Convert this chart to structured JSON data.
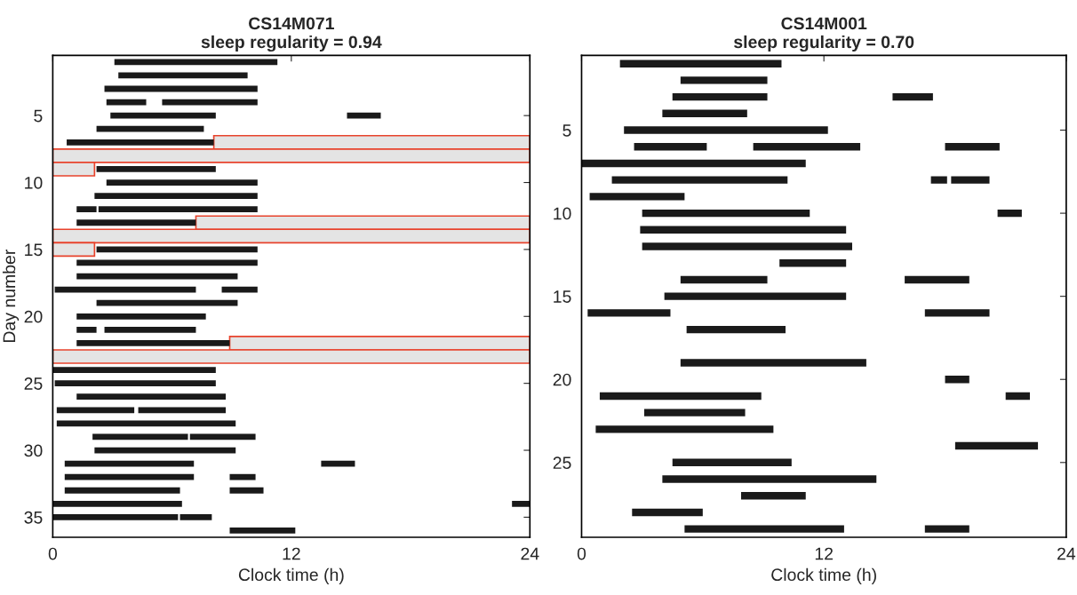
{
  "chart_data": [
    {
      "type": "bar",
      "orientation": "horizontal",
      "title": "CS14M071",
      "subtitle": "sleep regularity = 0.94",
      "xlabel": "Clock time (h)",
      "ylabel": "Day number",
      "categories": [
        null,
        null,
        null,
        null,
        "5",
        null,
        null,
        null,
        null,
        "10",
        null,
        null,
        null,
        null,
        "15",
        null,
        null,
        null,
        null,
        "20",
        null,
        null,
        null,
        null,
        "25",
        null,
        null,
        null,
        null,
        "30",
        null,
        null,
        null,
        null,
        "35",
        null
      ],
      "xlim": [
        0,
        24
      ],
      "xticks": [
        0,
        12,
        24
      ],
      "grid": false,
      "legend": false,
      "series": [
        {
          "color": "#e4e4e4",
          "base": [
            null,
            null,
            null,
            null,
            null,
            null,
            8.1,
            0,
            0,
            null,
            null,
            null,
            7.2,
            0,
            0,
            null,
            null,
            null,
            null,
            null,
            null,
            8.9,
            0,
            null,
            null,
            null,
            null,
            null,
            null,
            null,
            null,
            null,
            null,
            null,
            null,
            null
          ],
          "values": [
            null,
            null,
            null,
            null,
            null,
            null,
            15.9,
            24,
            2.1,
            null,
            null,
            null,
            16.8,
            24,
            2.1,
            null,
            null,
            null,
            null,
            null,
            null,
            15.1,
            24,
            null,
            null,
            null,
            null,
            null,
            null,
            null,
            null,
            null,
            null,
            null,
            null,
            null
          ]
        },
        {
          "color": "#1a1a1a",
          "base": [
            3.1,
            3.3,
            2.6,
            2.7,
            2.9,
            2.2,
            0.7,
            null,
            2.2,
            2.7,
            2.1,
            1.2,
            1.2,
            null,
            2.2,
            1.2,
            1.2,
            0.1,
            2.2,
            1.2,
            1.2,
            1.2,
            null,
            0,
            0.1,
            1.2,
            0.2,
            0.2,
            2.0,
            2.1,
            0.6,
            0.6,
            0.6,
            0,
            0,
            8.9
          ],
          "values": [
            8.2,
            6.5,
            7.7,
            2.0,
            5.3,
            5.4,
            7.4,
            null,
            6.0,
            7.6,
            8.2,
            1.0,
            6.0,
            null,
            8.1,
            9.1,
            8.1,
            7.1,
            7.1,
            6.5,
            1.0,
            7.7,
            null,
            8.2,
            8.1,
            7.5,
            3.9,
            9.0,
            4.8,
            7.1,
            6.5,
            6.5,
            5.8,
            6.5,
            6.3,
            3.3
          ]
        },
        {
          "color": "#1a1a1a",
          "base": [
            null,
            null,
            null,
            5.5,
            14.8,
            null,
            null,
            null,
            null,
            null,
            null,
            2.3,
            null,
            null,
            null,
            null,
            null,
            8.5,
            null,
            null,
            2.6,
            null,
            null,
            null,
            null,
            null,
            4.3,
            null,
            6.9,
            null,
            13.5,
            8.9,
            8.9,
            23.1,
            6.4,
            null
          ],
          "values": [
            null,
            null,
            null,
            4.8,
            1.7,
            null,
            null,
            null,
            null,
            null,
            null,
            8.0,
            null,
            null,
            null,
            null,
            null,
            1.8,
            null,
            null,
            4.6,
            null,
            null,
            null,
            null,
            null,
            4.4,
            null,
            3.3,
            null,
            1.7,
            1.3,
            1.7,
            0.9,
            1.6,
            null
          ]
        }
      ]
    },
    {
      "type": "bar",
      "orientation": "horizontal",
      "title": "CS14M001",
      "subtitle": "sleep regularity = 0.70",
      "xlabel": "Clock time (h)",
      "categories": [
        null,
        null,
        null,
        null,
        "5",
        null,
        null,
        null,
        null,
        "10",
        null,
        null,
        null,
        null,
        "15",
        null,
        null,
        null,
        null,
        "20",
        null,
        null,
        null,
        null,
        "25",
        null,
        null,
        null,
        null
      ],
      "xlim": [
        0,
        24
      ],
      "xticks": [
        0,
        12,
        24
      ],
      "grid": false,
      "legend": false,
      "series": [
        {
          "color": "#1a1a1a",
          "base": [
            1.9,
            4.9,
            4.5,
            4.0,
            2.1,
            2.6,
            0,
            1.5,
            0.4,
            3.0,
            2.9,
            3.0,
            9.8,
            4.9,
            4.1,
            0.3,
            5.2,
            null,
            4.9,
            18.0,
            0.9,
            3.1,
            0.7,
            18.5,
            4.5,
            4.0,
            7.9,
            2.5,
            5.1
          ],
          "values": [
            8.0,
            4.3,
            4.7,
            4.2,
            10.1,
            3.6,
            11.1,
            8.7,
            4.7,
            8.3,
            10.2,
            10.4,
            3.3,
            4.3,
            9.0,
            4.1,
            4.9,
            null,
            9.2,
            1.2,
            8.0,
            5.0,
            8.8,
            4.1,
            5.9,
            10.6,
            3.2,
            3.5,
            7.9
          ]
        },
        {
          "color": "#1a1a1a",
          "base": [
            null,
            null,
            15.4,
            null,
            null,
            8.5,
            null,
            17.3,
            null,
            20.6,
            null,
            null,
            null,
            16.0,
            null,
            17.0,
            null,
            null,
            null,
            null,
            21.0,
            null,
            null,
            null,
            null,
            null,
            null,
            null,
            17.0
          ],
          "values": [
            null,
            null,
            2.0,
            null,
            null,
            5.3,
            null,
            0.8,
            null,
            1.2,
            null,
            null,
            null,
            3.2,
            null,
            3.2,
            null,
            null,
            null,
            null,
            1.2,
            null,
            null,
            null,
            null,
            null,
            null,
            null,
            2.2
          ]
        },
        {
          "color": "#1a1a1a",
          "base": [
            null,
            null,
            null,
            null,
            null,
            18.0,
            null,
            18.3,
            null,
            null,
            null,
            null,
            null,
            null,
            null,
            null,
            null,
            null,
            null,
            null,
            null,
            null,
            null,
            null,
            null,
            null,
            null,
            null,
            null
          ],
          "values": [
            null,
            null,
            null,
            null,
            null,
            2.7,
            null,
            1.9,
            null,
            null,
            null,
            null,
            null,
            null,
            null,
            null,
            null,
            null,
            null,
            null,
            null,
            null,
            null,
            null,
            null,
            null,
            null,
            null,
            null
          ]
        }
      ]
    }
  ]
}
